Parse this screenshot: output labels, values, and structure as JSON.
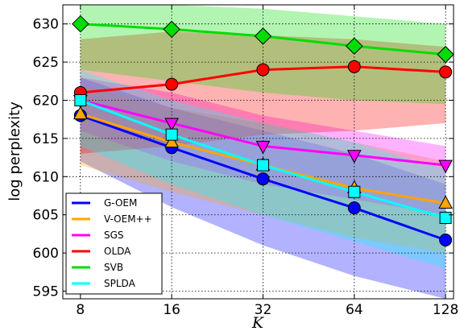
{
  "chart_data": {
    "type": "line",
    "xlabel": "K",
    "ylabel": "log perplexity",
    "x": [
      8,
      16,
      32,
      64,
      128
    ],
    "x_tick_labels": [
      "8",
      "16",
      "32",
      "64",
      "128"
    ],
    "x_scale": "log2",
    "xlim": [
      7,
      136
    ],
    "ylim": [
      594,
      632.5
    ],
    "y_ticks": [
      595,
      600,
      605,
      610,
      615,
      620,
      625,
      630
    ],
    "grid": true,
    "legend_position": "lower-left",
    "series": [
      {
        "name": "G-OEM",
        "color": "#0000ff",
        "marker": "circle",
        "values": [
          618,
          613.8,
          609.7,
          605.9,
          601.7
        ],
        "band_low": [
          612,
          606,
          601,
          597,
          594
        ],
        "band_high": [
          623,
          619,
          616,
          613,
          609
        ]
      },
      {
        "name": "V-OEM++",
        "color": "#ffa500",
        "marker": "triangle-up",
        "values": [
          618.2,
          614.5,
          611.5,
          608.5,
          606.5
        ],
        "band_low": [
          611.5,
          608,
          605,
          602,
          600
        ],
        "band_high": [
          622,
          619,
          617,
          614.5,
          612
        ]
      },
      {
        "name": "SGS",
        "color": "#ff00ff",
        "marker": "triangle-down",
        "values": [
          620,
          617,
          614,
          612.8,
          611.5
        ],
        "band_low": [
          616,
          612,
          609,
          607,
          605
        ],
        "band_high": [
          623,
          621,
          618,
          616,
          614
        ]
      },
      {
        "name": "OLDA",
        "color": "#ff0000",
        "marker": "circle",
        "values": [
          621,
          622.1,
          624,
          624.4,
          623.7
        ],
        "band_low": [
          613,
          614,
          615.5,
          616,
          617
        ],
        "band_high": [
          628,
          629,
          628.5,
          628,
          627
        ]
      },
      {
        "name": "SVB",
        "color": "#00dd00",
        "marker": "diamond",
        "values": [
          630,
          629.3,
          628.4,
          627.1,
          626
        ],
        "band_low": [
          624,
          622.5,
          621,
          620,
          619.5
        ],
        "band_high": [
          633,
          632.5,
          632,
          631,
          630
        ]
      },
      {
        "name": "SPLDA",
        "color": "#00ffff",
        "marker": "square",
        "values": [
          620,
          615.5,
          611.5,
          608,
          604.6
        ],
        "band_low": [
          614,
          609,
          605,
          601.5,
          598
        ],
        "band_high": [
          624,
          620,
          617,
          614.5,
          611
        ]
      }
    ]
  }
}
